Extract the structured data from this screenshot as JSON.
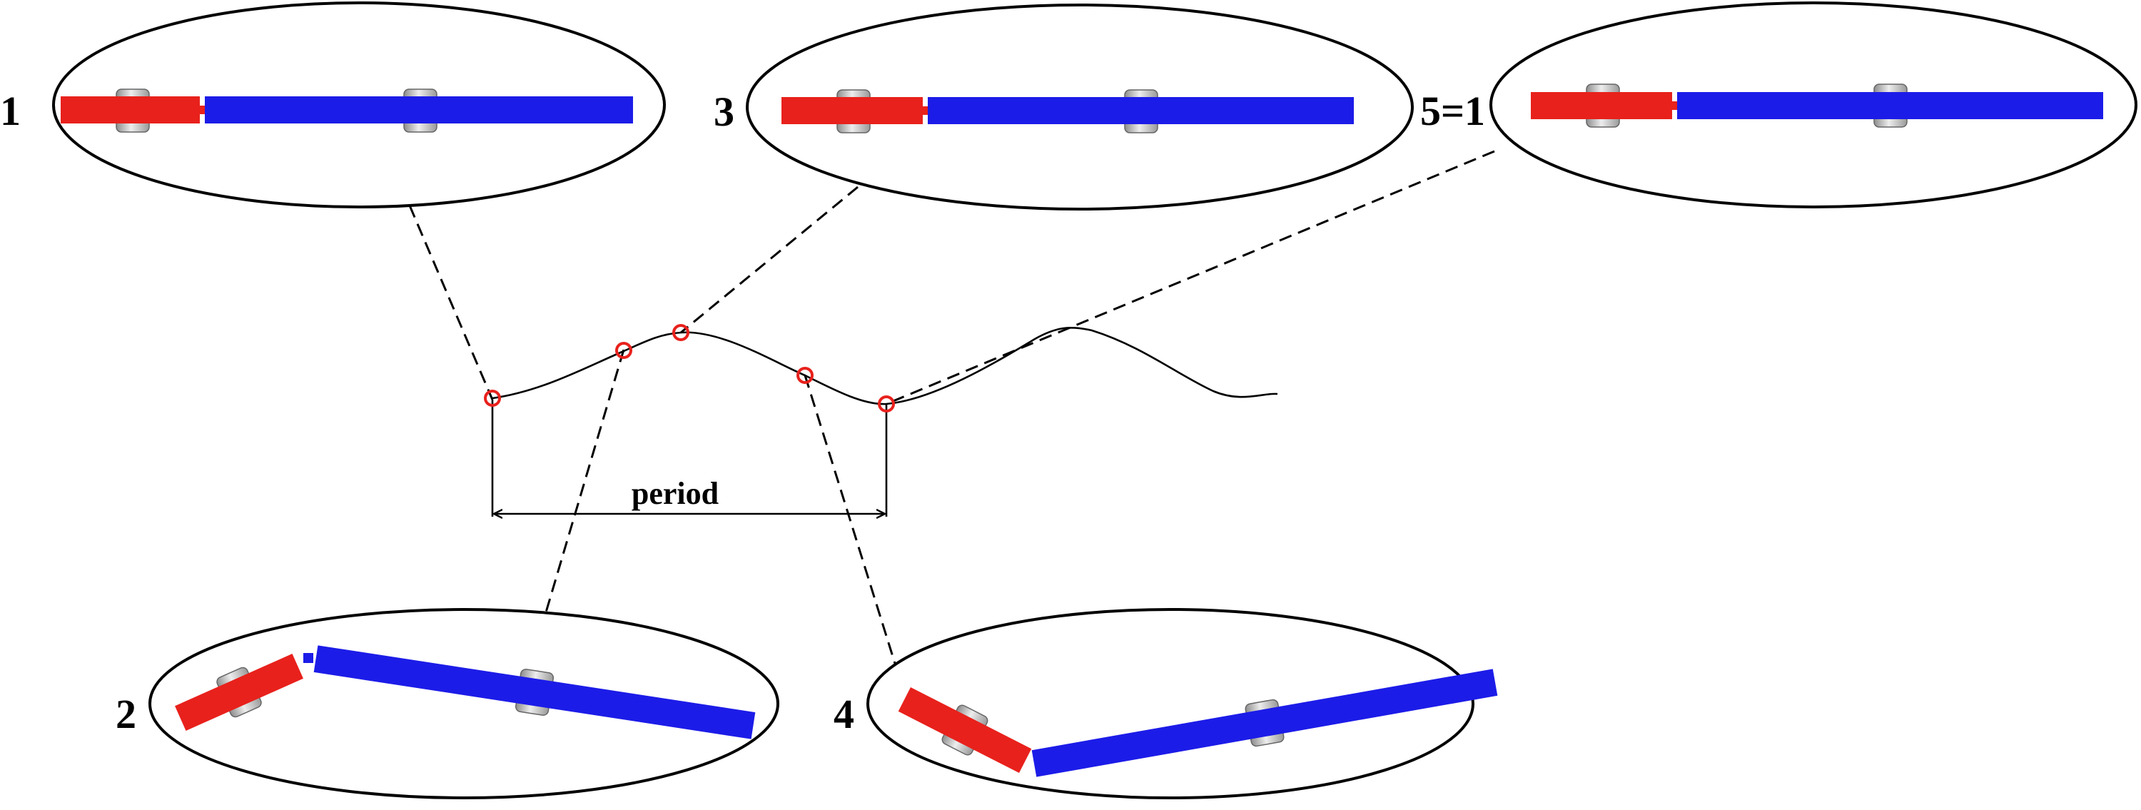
{
  "labels": {
    "phase_1": "1",
    "phase_2": "2",
    "phase_3": "3",
    "phase_4": "4",
    "phase_5": "5=1",
    "period": "period"
  },
  "colors": {
    "head_segment": "#e8211c",
    "body_segment": "#1c1ce8",
    "marker": "#e8211c",
    "wheel": "#bdbdbd",
    "line": "#000000"
  },
  "icons": {
    "wheel": "wheel-icon",
    "joint": "joint-connector-icon"
  }
}
